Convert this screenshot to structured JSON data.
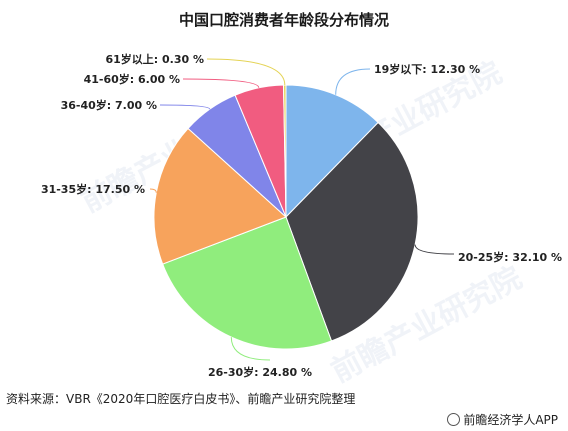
{
  "title": "中国口腔消费者年龄段分布情况",
  "watermark": "前瞻产业研究院",
  "source": "资料来源：VBR《2020年口腔医疗白皮书》、前瞻产业研究院整理",
  "brand": "前瞻经济学人APP",
  "chart_data": {
    "type": "pie",
    "title": "中国口腔消费者年龄段分布情况",
    "start_angle_deg": 0,
    "direction": "clockwise",
    "slices": [
      {
        "label": "19岁以下",
        "value": 12.3,
        "display": "19岁以下: 12.30 %",
        "color": "#7eb5ec"
      },
      {
        "label": "20-25岁",
        "value": 32.1,
        "display": "20-25岁: 32.10 %",
        "color": "#434348"
      },
      {
        "label": "26-30岁",
        "value": 24.8,
        "display": "26-30岁: 24.80 %",
        "color": "#90ed7d"
      },
      {
        "label": "31-35岁",
        "value": 17.5,
        "display": "31-35岁: 17.50 %",
        "color": "#f7a35c"
      },
      {
        "label": "36-40岁",
        "value": 7.0,
        "display": "36-40岁: 7.00 %",
        "color": "#8085e9"
      },
      {
        "label": "41-60岁",
        "value": 6.0,
        "display": "41-60岁: 6.00 %",
        "color": "#f15c80"
      },
      {
        "label": "61岁以上",
        "value": 0.3,
        "display": "61岁以上: 0.30 %",
        "color": "#e4d354"
      }
    ]
  }
}
